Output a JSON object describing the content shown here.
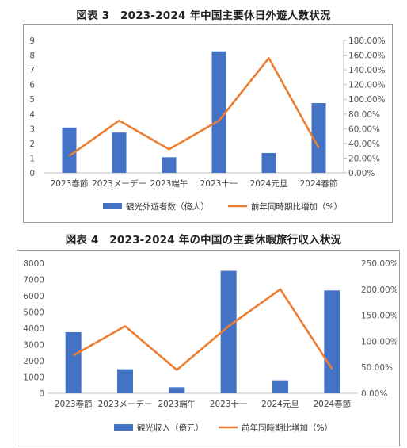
{
  "chart_data": [
    {
      "title": "図表 3　2023-2024 年中国主要休日外遊人数状況",
      "type": "bar",
      "categories": [
        "2023春節",
        "2023メーデー",
        "2023端午",
        "2023十一",
        "2024元旦",
        "2024春節"
      ],
      "series": [
        {
          "name": "観光外遊者数（億人）",
          "type": "bar",
          "axis": "left",
          "color": "#4472C4",
          "values": [
            3.08,
            2.74,
            1.06,
            8.26,
            1.35,
            4.74
          ]
        },
        {
          "name": "前年同時期比増加（%）",
          "type": "line",
          "axis": "right",
          "color": "#ED7D31",
          "values": [
            23.0,
            71.0,
            32.0,
            71.0,
            156.0,
            34.0
          ]
        }
      ],
      "y_left": {
        "min": 0,
        "max": 9,
        "step": 1,
        "ticks": [
          "0",
          "1",
          "2",
          "3",
          "4",
          "5",
          "6",
          "7",
          "8",
          "9"
        ]
      },
      "y_right": {
        "min": 0,
        "max": 180,
        "step": 20,
        "ticks": [
          "0.00%",
          "20.00%",
          "40.00%",
          "60.00%",
          "80.00%",
          "100.00%",
          "120.00%",
          "140.00%",
          "160.00%",
          "180.00%"
        ]
      },
      "legend": "bottom",
      "grid": false
    },
    {
      "title": "図表 4　2023-2024 年の中国の主要休暇旅行収入状況",
      "type": "bar",
      "categories": [
        "2023春節",
        "2023メーデー",
        "2023端午",
        "2023十一",
        "2024元旦",
        "2024春節"
      ],
      "series": [
        {
          "name": "観光収入（億元）",
          "type": "bar",
          "axis": "left",
          "color": "#4472C4",
          "values": [
            3758,
            1481,
            373,
            7534,
            797,
            6327
          ]
        },
        {
          "name": "前年同時期比増加（%）",
          "type": "line",
          "axis": "right",
          "color": "#ED7D31",
          "values": [
            73.0,
            129.0,
            45.0,
            129.0,
            200.0,
            47.0
          ]
        }
      ],
      "y_left": {
        "min": 0,
        "max": 8000,
        "step": 1000,
        "ticks": [
          "0",
          "1000",
          "2000",
          "3000",
          "4000",
          "5000",
          "6000",
          "7000",
          "8000"
        ]
      },
      "y_right": {
        "min": 0,
        "max": 250,
        "step": 50,
        "ticks": [
          "0.00%",
          "50.00%",
          "100.00%",
          "150.00%",
          "200.00%",
          "250.00%"
        ]
      },
      "legend": "bottom",
      "grid": false
    }
  ]
}
